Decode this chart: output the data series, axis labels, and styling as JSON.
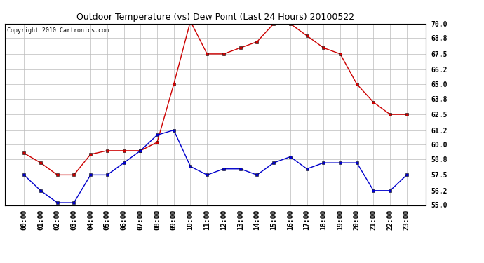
{
  "title": "Outdoor Temperature (vs) Dew Point (Last 24 Hours) 20100522",
  "copyright": "Copyright 2010 Cartronics.com",
  "x_labels": [
    "00:00",
    "01:00",
    "02:00",
    "03:00",
    "04:00",
    "05:00",
    "06:00",
    "07:00",
    "08:00",
    "09:00",
    "10:00",
    "11:00",
    "12:00",
    "13:00",
    "14:00",
    "15:00",
    "16:00",
    "17:00",
    "18:00",
    "19:00",
    "20:00",
    "21:00",
    "22:00",
    "23:00"
  ],
  "temp_data": [
    59.3,
    58.5,
    57.5,
    57.5,
    59.2,
    59.5,
    59.5,
    59.5,
    60.2,
    65.0,
    70.2,
    67.5,
    67.5,
    68.0,
    68.5,
    70.0,
    70.0,
    69.0,
    68.0,
    67.5,
    65.0,
    63.5,
    62.5,
    62.5
  ],
  "dew_data": [
    57.5,
    56.2,
    55.2,
    55.2,
    57.5,
    57.5,
    58.5,
    59.5,
    60.8,
    61.2,
    58.2,
    57.5,
    58.0,
    58.0,
    57.5,
    58.5,
    59.0,
    58.0,
    58.5,
    58.5,
    58.5,
    56.2,
    56.2,
    57.5
  ],
  "temp_color": "#cc0000",
  "dew_color": "#0000cc",
  "ylim": [
    55.0,
    70.0
  ],
  "ytick_values": [
    55.0,
    56.2,
    57.5,
    58.8,
    60.0,
    61.2,
    62.5,
    63.8,
    65.0,
    66.2,
    67.5,
    68.8,
    70.0
  ],
  "bg_color": "#ffffff",
  "plot_bg_color": "#ffffff",
  "grid_color": "#bbbbbb",
  "title_fontsize": 9,
  "copyright_fontsize": 6,
  "tick_fontsize": 7,
  "marker_size": 3
}
